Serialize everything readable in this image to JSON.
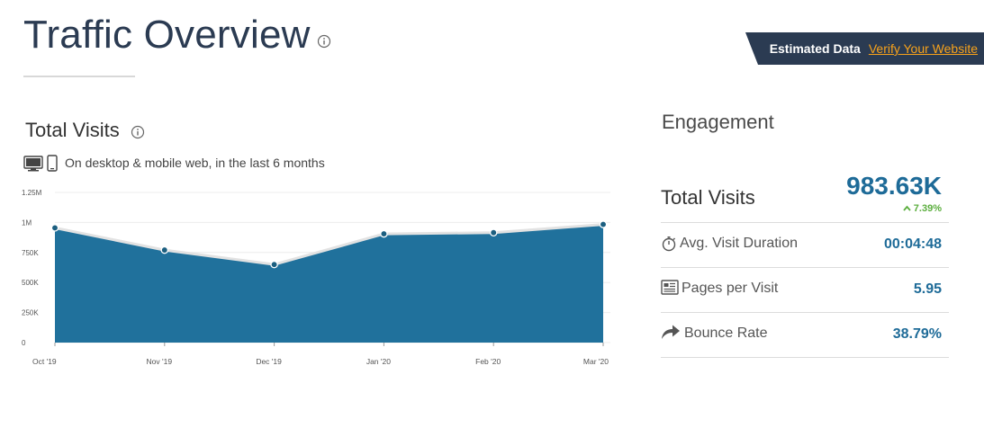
{
  "header": {
    "title": "Traffic Overview",
    "banner": {
      "estimated_label": "Estimated Data",
      "verify_link": "Verify Your Website"
    }
  },
  "total_visits": {
    "title": "Total Visits",
    "subtitle": "On desktop & mobile web, in the last 6 months"
  },
  "chart_data": {
    "type": "area",
    "categories": [
      "Oct '19",
      "Nov '19",
      "Dec '19",
      "Jan '20",
      "Feb '20",
      "Mar '20"
    ],
    "values": [
      955000,
      770000,
      650000,
      905000,
      915000,
      983630
    ],
    "ylim": [
      0,
      1250000
    ],
    "yticks": [
      "0",
      "250K",
      "500K",
      "750K",
      "1M",
      "1.25M"
    ],
    "grid": true,
    "colors": {
      "fill": "#20719c",
      "line": "#e2e2e2",
      "point": "#1c5f80"
    }
  },
  "engagement": {
    "title": "Engagement",
    "total_visits": {
      "label": "Total Visits",
      "value": "983.63K",
      "change": "7.39%"
    },
    "metrics": [
      {
        "label": "Avg. Visit Duration",
        "value": "00:04:48",
        "icon": "stopwatch-icon"
      },
      {
        "label": "Pages per Visit",
        "value": "5.95",
        "icon": "pages-icon"
      },
      {
        "label": "Bounce Rate",
        "value": "38.79%",
        "icon": "bounce-arrow-icon"
      }
    ]
  },
  "colors": {
    "accent": "#1e6b98",
    "banner_bg": "#2b3b52",
    "link": "#f7a21b",
    "positive": "#5bae3e"
  }
}
